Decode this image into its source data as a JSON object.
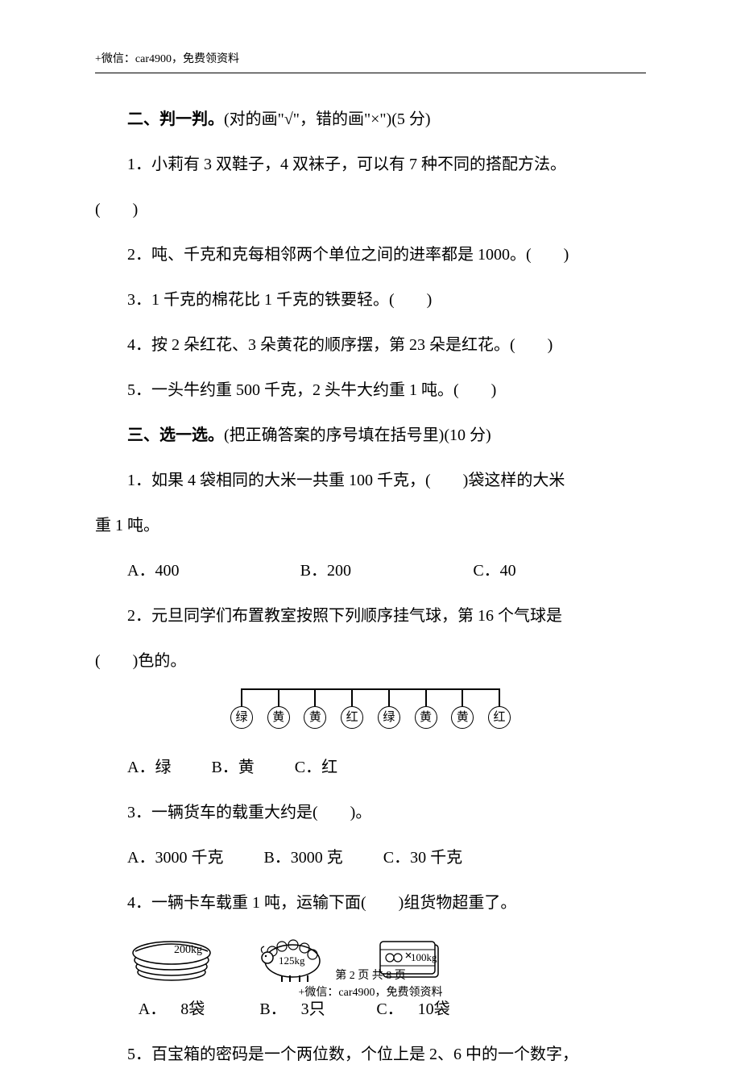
{
  "header": "+微信：car4900，免费领资料",
  "section2": {
    "title_bold": "二、判一判。",
    "title_rest": "(对的画\"√\"，错的画\"×\")(5 分)",
    "q1": "1．小莉有 3 双鞋子，4 双袜子，可以有 7 种不同的搭配方法。",
    "q1_paren": "(　　)",
    "q2": "2．吨、千克和克每相邻两个单位之间的进率都是 1000。(　　)",
    "q3": "3．1 千克的棉花比 1 千克的铁要轻。(　　)",
    "q4": "4．按 2 朵红花、3 朵黄花的顺序摆，第 23 朵是红花。(　　)",
    "q5": "5．一头牛约重 500 千克，2 头牛大约重 1 吨。(　　)"
  },
  "section3": {
    "title_bold": "三、选一选。",
    "title_rest": "(把正确答案的序号填在括号里)(10 分)",
    "q1a": "1．如果 4 袋相同的大米一共重 100 千克，(　　)袋这样的大米",
    "q1b": "重 1 吨。",
    "q1_opts": {
      "A": "A．400",
      "B": "B．200",
      "C": "C．40"
    },
    "q2a": "2．元旦同学们布置教室按照下列顺序挂气球，第 16 个气球是",
    "q2b": "(　　)色的。",
    "balloons": [
      "绿",
      "黄",
      "黄",
      "红",
      "绿",
      "黄",
      "黄",
      "红"
    ],
    "q2_opts": {
      "A": "A．绿",
      "B": "B．黄",
      "C": "C．红"
    },
    "q3": "3．一辆货车的载重大约是(　　)。",
    "q3_opts": {
      "A": "A．3000 千克",
      "B": "B．3000 克",
      "C": "C．30 千克"
    },
    "q4": "4．一辆卡车载重 1 吨，运输下面(　　)组货物超重了。",
    "q4_items": {
      "A": {
        "label": "A．",
        "weight": "200kg",
        "qty": "8袋"
      },
      "B": {
        "label": "B．",
        "weight": "125kg",
        "qty": "3只"
      },
      "C": {
        "label": "C．",
        "weight": "100kg",
        "qty": "10袋"
      }
    },
    "q5": "5．百宝箱的密码是一个两位数，个位上是 2、6 中的一个数字，"
  },
  "footer": {
    "line1": "第 2 页 共 8 页",
    "line2": "+微信：car4900，免费领资料"
  },
  "colors": {
    "text": "#000000",
    "bg": "#ffffff"
  }
}
